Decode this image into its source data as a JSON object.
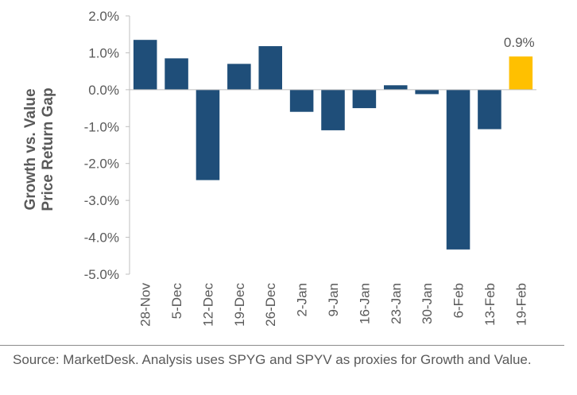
{
  "chart_data": {
    "type": "bar",
    "categories": [
      "28-Nov",
      "5-Dec",
      "12-Dec",
      "19-Dec",
      "26-Dec",
      "2-Jan",
      "9-Jan",
      "16-Jan",
      "23-Jan",
      "30-Jan",
      "6-Feb",
      "13-Feb",
      "19-Feb"
    ],
    "values": [
      1.35,
      0.85,
      -2.45,
      0.7,
      1.18,
      -0.6,
      -1.1,
      -0.5,
      0.12,
      -0.12,
      -4.33,
      -1.07,
      0.9
    ],
    "ylabel_lines": [
      "Growth vs. Value",
      "Price Return Gap"
    ],
    "ylim": [
      -5.0,
      2.0
    ],
    "yticks": [
      "2.0%",
      "1.0%",
      "0.0%",
      "-1.0%",
      "-2.0%",
      "-3.0%",
      "-4.0%",
      "-5.0%"
    ],
    "ytick_values": [
      2,
      1,
      0,
      -1,
      -2,
      -3,
      -4,
      -5
    ],
    "highlight_label": "0.9%",
    "highlight_index": 12,
    "grid": false,
    "colors": {
      "bar": "#1f4e79",
      "highlight": "#ffc000",
      "axis": "#bfbfbf",
      "text": "#595959",
      "ylabel": "#595959"
    }
  },
  "source": "Source: MarketDesk. Analysis uses SPYG and SPYV as proxies for Growth and Value."
}
